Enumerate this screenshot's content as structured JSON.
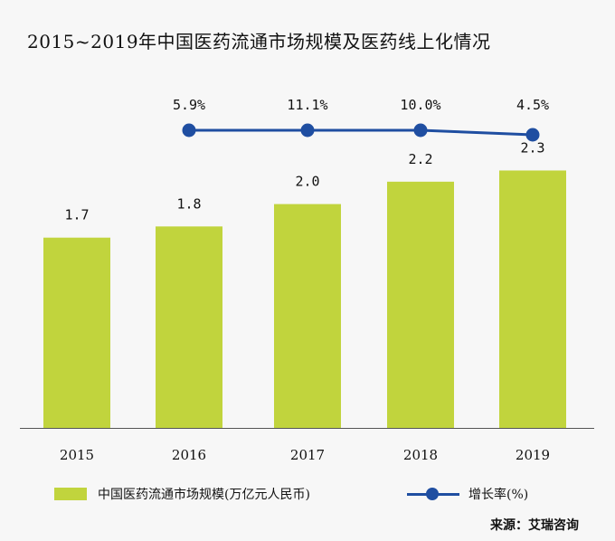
{
  "title": "2015~2019年中国医药流通市场规模及医药线上化情况",
  "source": "来源：艾瑞咨询",
  "colors": {
    "bar": "#c1d43d",
    "line": "#1f4ea1",
    "axis": "#555555",
    "background": "#f7f7f7"
  },
  "chart_data": {
    "type": "bar",
    "categories": [
      "2015",
      "2016",
      "2017",
      "2018",
      "2019"
    ],
    "series": [
      {
        "name": "中国医药流通市场规模(万亿元人民币)",
        "type": "bar",
        "values": [
          1.7,
          1.8,
          2.0,
          2.2,
          2.3
        ],
        "labels": [
          "1.7",
          "1.8",
          "2.0",
          "2.2",
          "2.3"
        ]
      },
      {
        "name": "增长率(%)",
        "type": "line",
        "x": [
          "2016",
          "2017",
          "2018",
          "2019"
        ],
        "values": [
          5.9,
          11.1,
          10.0,
          4.5
        ],
        "labels": [
          "5.9%",
          "11.1%",
          "10.0%",
          "4.5%"
        ]
      }
    ],
    "ylim": [
      0,
      3.5
    ],
    "legend_position": "bottom",
    "grid": false
  }
}
